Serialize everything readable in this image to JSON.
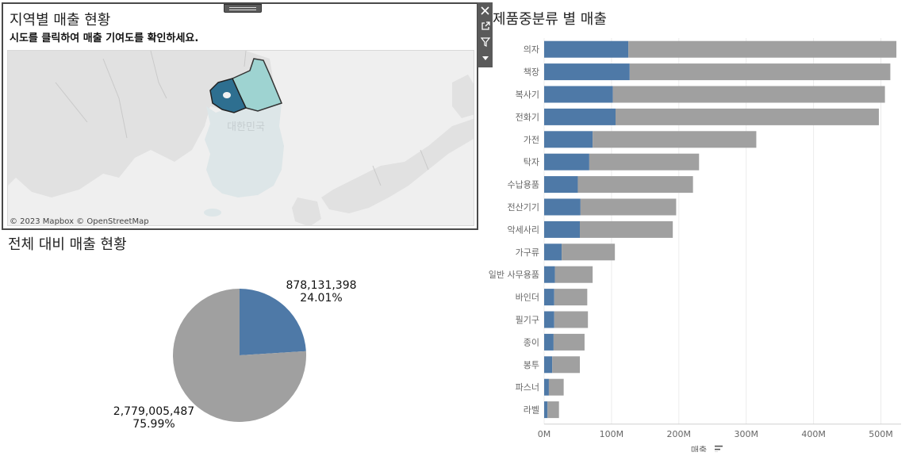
{
  "map_panel": {
    "title": "지역별 매출 현황",
    "subtitle": "시도를 클릭하여 매출 기여도를 확인하세요.",
    "attribution": "© 2023 Mapbox © OpenStreetMap",
    "country_label": "대한민국",
    "colors": {
      "sea": "#efefef",
      "land": "#e1e1e1",
      "korea": "#dde6e8",
      "seoul_gyeonggi": "#2e6f90",
      "gangwon": "#9ed3d1"
    }
  },
  "toolbar": {
    "close_icon": "close-icon",
    "open_icon": "external-link-icon",
    "filter_icon": "filter-icon",
    "more_icon": "dropdown-icon"
  },
  "bar_chart_title": "제품중분류 별 매출",
  "pie_title": "전체 대비 매출 현황",
  "chart_data": [
    {
      "type": "bar",
      "orientation": "horizontal",
      "stacked": true,
      "categories": [
        "의자",
        "책장",
        "복사기",
        "전화기",
        "가전",
        "탁자",
        "수납용품",
        "전산기기",
        "악세사리",
        "가구류",
        "일반 사무용품",
        "바인더",
        "필기구",
        "종이",
        "봉투",
        "파스너",
        "라벨"
      ],
      "series": [
        {
          "color": "#4e79a7",
          "values": [
            125,
            127,
            102,
            106,
            72,
            67,
            50,
            54,
            53,
            26,
            16,
            15,
            15,
            14,
            12,
            7,
            5
          ]
        },
        {
          "color": "#a0a0a0",
          "values": [
            398,
            387,
            404,
            391,
            243,
            163,
            171,
            142,
            138,
            79,
            56,
            49,
            50,
            46,
            41,
            22,
            17
          ]
        }
      ],
      "xlabel": "매출",
      "xlim": [
        0,
        530
      ],
      "xticks": [
        "0M",
        "100M",
        "200M",
        "300M",
        "400M",
        "500M"
      ],
      "grid": true,
      "sort_icon": "sort-descending-icon"
    },
    {
      "type": "pie",
      "slices": [
        {
          "value": 878131398,
          "value_label": "878,131,398",
          "percent_label": "24.01%",
          "color": "#4e79a7"
        },
        {
          "value": 2779005487,
          "value_label": "2,779,005,487",
          "percent_label": "75.99%",
          "color": "#a0a0a0"
        }
      ]
    }
  ]
}
